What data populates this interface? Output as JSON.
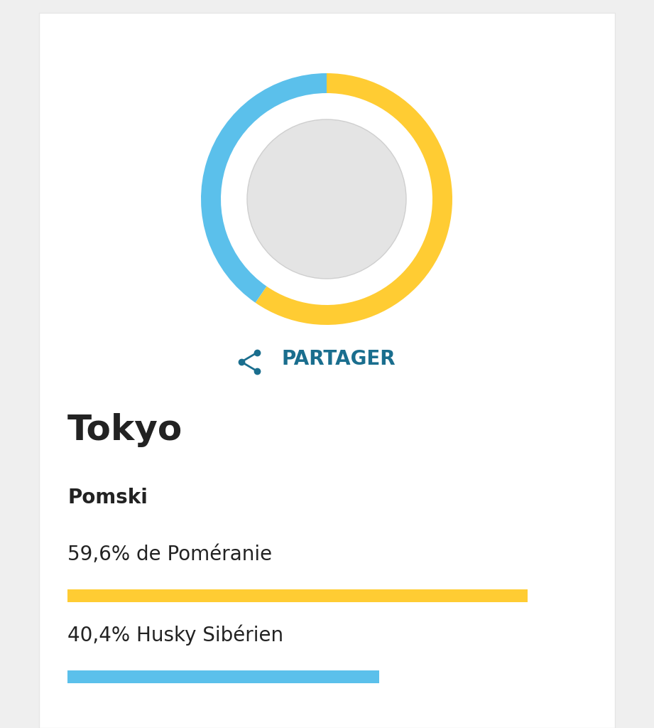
{
  "chart_data": {
    "type": "pie",
    "title": "Tokyo",
    "subtitle": "Pomski",
    "annotations": [
      "PARTAGER"
    ],
    "values": [
      59.6,
      40.4
    ],
    "value_labels": [
      "59,6% de Poméranie",
      "40,4% Husky Sibérien"
    ],
    "colors": [
      "#FFCC33",
      "#5BC0EB"
    ],
    "xlim": [
      0,
      60
    ],
    "tick_labels": false
  }
}
